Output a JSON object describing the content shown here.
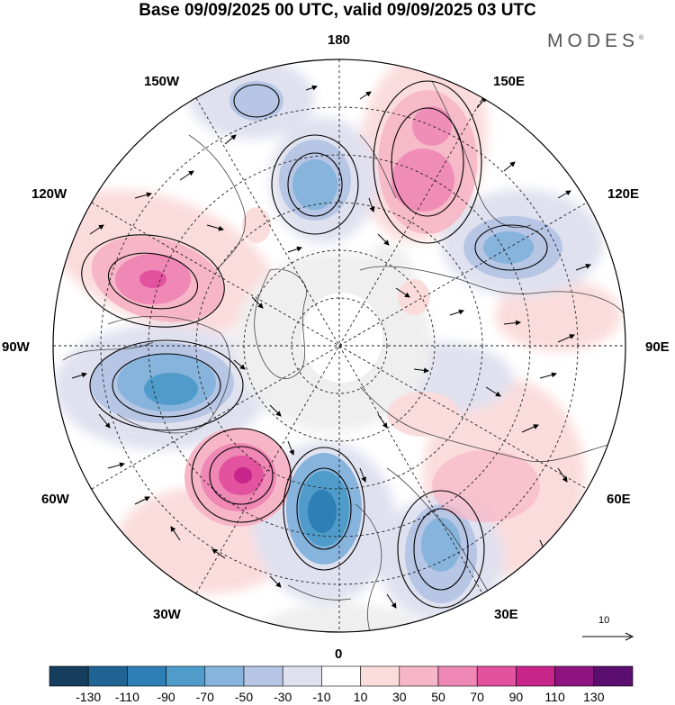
{
  "title": "Base 09/09/2025 00 UTC, valid 09/09/2025 03 UTC",
  "brand": "MODES",
  "brand_mark": "®",
  "longitude_labels": {
    "lon_180": "180",
    "lon_150e": "150E",
    "lon_120e": "120E",
    "lon_90e": "90E",
    "lon_60e": "60E",
    "lon_30e": "30E",
    "lon_0": "0",
    "lon_30w": "30W",
    "lon_60w": "60W",
    "lon_90w": "90W",
    "lon_120w": "120W",
    "lon_150w": "150W"
  },
  "reference_vector": {
    "label": "10"
  },
  "colorbar": {
    "labels": [
      "-130",
      "-110",
      "-90",
      "-70",
      "-50",
      "-30",
      "-10",
      "10",
      "30",
      "50",
      "70",
      "90",
      "110",
      "130"
    ],
    "colors": [
      "#143d5e",
      "#1f6492",
      "#2e7fb5",
      "#4f9ccb",
      "#86b4dc",
      "#b7c6e5",
      "#e0e1ef",
      "#ffffff",
      "#fbdcdc",
      "#f6b6c7",
      "#ef88b4",
      "#e2529f",
      "#c72589",
      "#8e1480",
      "#5b0e70"
    ]
  },
  "map": {
    "projection": "north-polar-stereographic",
    "anomaly_centers": [
      {
        "name": "positive-anomaly-east-siberia",
        "sign": "+",
        "peak": 90
      },
      {
        "name": "negative-anomaly-bering",
        "sign": "-",
        "peak": -50
      },
      {
        "name": "negative-anomaly-gulf-of-alaska",
        "sign": "-",
        "peak": -30
      },
      {
        "name": "positive-anomaly-canada-west",
        "sign": "+",
        "peak": 90
      },
      {
        "name": "negative-anomaly-hudson-bay",
        "sign": "-",
        "peak": -90
      },
      {
        "name": "positive-anomaly-north-atlantic",
        "sign": "+",
        "peak": 110
      },
      {
        "name": "negative-anomaly-iceland-norway",
        "sign": "-",
        "peak": -110
      },
      {
        "name": "negative-anomaly-europe",
        "sign": "-",
        "peak": -70
      },
      {
        "name": "positive-anomaly-west-siberia",
        "sign": "+",
        "peak": 50
      },
      {
        "name": "negative-anomaly-central-siberia",
        "sign": "-",
        "peak": -50
      }
    ]
  }
}
